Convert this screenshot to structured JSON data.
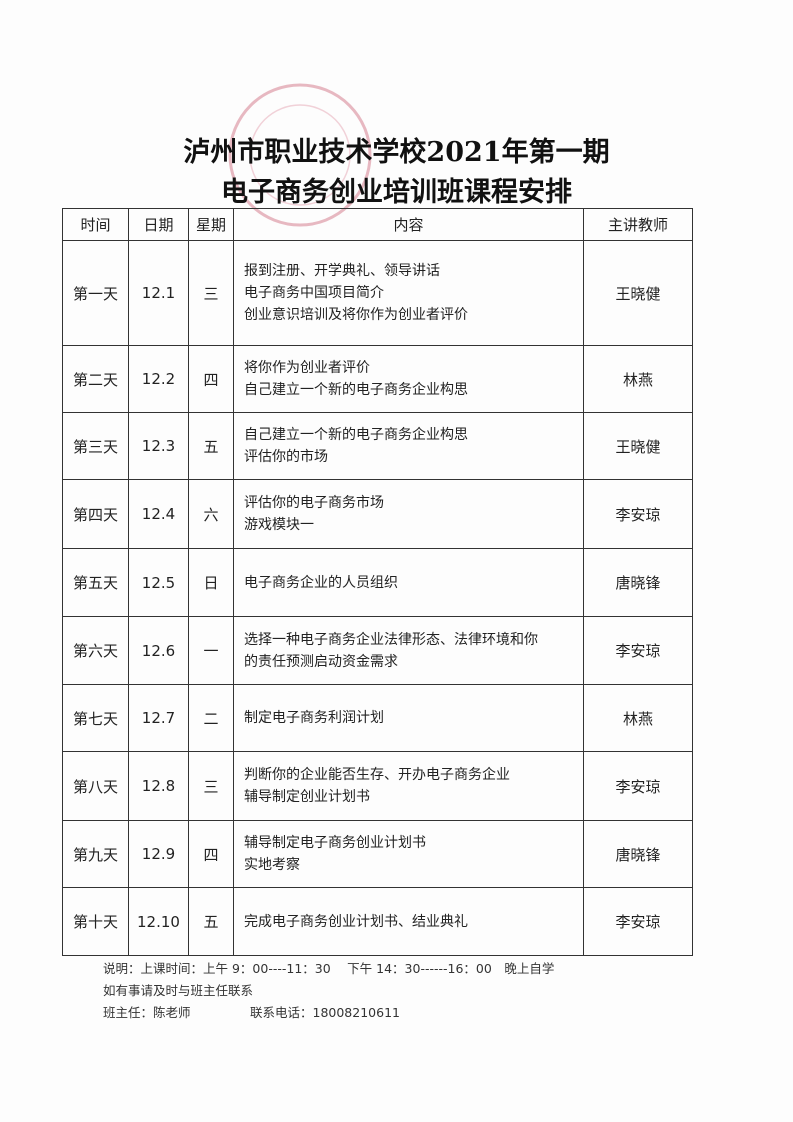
{
  "header": {
    "title_lines": [
      "泸州市职业技术学校2021年第一期",
      "电子商务创业培训班课程安排"
    ]
  },
  "table": {
    "columns": [
      "时间",
      "日期",
      "星期",
      "内容",
      "主讲教师"
    ],
    "rows": [
      {
        "day": "第一天",
        "date": "12.1",
        "weekday": "三",
        "content": [
          "报到注册、开学典礼、领导讲话",
          "电子商务中国项目简介",
          "创业意识培训及将你作为创业者评价"
        ],
        "teacher": "王晓健"
      },
      {
        "day": "第二天",
        "date": "12.2",
        "weekday": "四",
        "content": [
          "将你作为创业者评价",
          "自己建立一个新的电子商务企业构思"
        ],
        "teacher": "林燕"
      },
      {
        "day": "第三天",
        "date": "12.3",
        "weekday": "五",
        "content": [
          "自己建立一个新的电子商务企业构思",
          "评估你的市场"
        ],
        "teacher": "王晓健"
      },
      {
        "day": "第四天",
        "date": "12.4",
        "weekday": "六",
        "content": [
          "评估你的电子商务市场",
          "游戏模块一"
        ],
        "teacher": "李安琼"
      },
      {
        "day": "第五天",
        "date": "12.5",
        "weekday": "日",
        "content": [
          "电子商务企业的人员组织"
        ],
        "teacher": "唐晓锋"
      },
      {
        "day": "第六天",
        "date": "12.6",
        "weekday": "一",
        "content": [
          "选择一种电子商务企业法律形态、法律环境和你",
          "的责任预测启动资金需求"
        ],
        "teacher": "李安琼"
      },
      {
        "day": "第七天",
        "date": "12.7",
        "weekday": "二",
        "content": [
          "制定电子商务利润计划"
        ],
        "teacher": "林燕"
      },
      {
        "day": "第八天",
        "date": "12.8",
        "weekday": "三",
        "content": [
          "判断你的企业能否生存、开办电子商务企业",
          "辅导制定创业计划书"
        ],
        "teacher": "李安琼"
      },
      {
        "day": "第九天",
        "date": "12.9",
        "weekday": "四",
        "content": [
          "辅导制定电子商务创业计划书",
          "实地考察"
        ],
        "teacher": "唐晓锋"
      },
      {
        "day": "第十天",
        "date": "12.10",
        "weekday": "五",
        "content": [
          "完成电子商务创业计划书、结业典礼"
        ],
        "teacher": "李安琼"
      }
    ]
  },
  "notes": {
    "schedule": "说明：上课时间：上午 9：00----11：30　 下午 14：30------16：00　晚上自学",
    "contact_note": "如有事请及时与班主任联系",
    "head_teacher": "班主任：陈老师",
    "phone": "联系电话：18008210611"
  }
}
